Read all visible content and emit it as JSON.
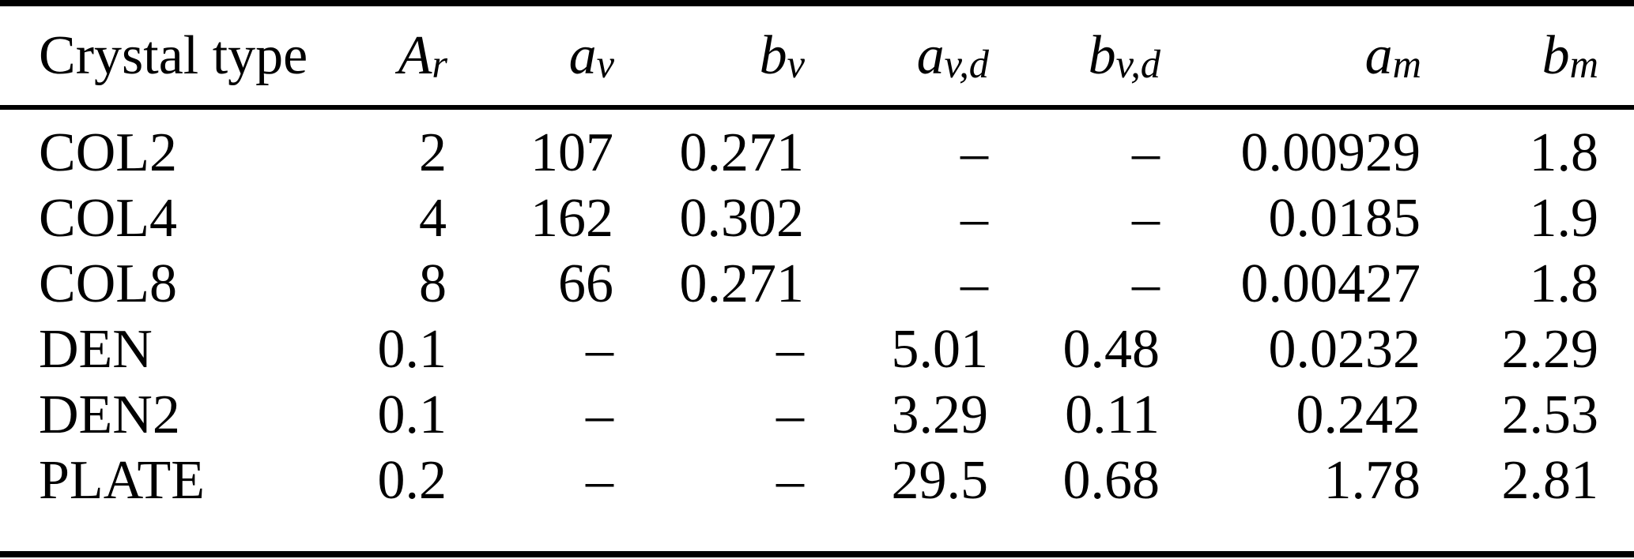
{
  "table": {
    "title": "crystal-type-parameters",
    "text_color": "#000000",
    "background_color": "#ffffff",
    "rule_color": "#000000",
    "missing_value_symbol": "–",
    "columns": [
      {
        "base": "Crystal type",
        "sub": ""
      },
      {
        "base": "A",
        "sub": "r"
      },
      {
        "base": "a",
        "sub": "v"
      },
      {
        "base": "b",
        "sub": "v"
      },
      {
        "base": "a",
        "sub": "v,d"
      },
      {
        "base": "b",
        "sub": "v,d"
      },
      {
        "base": "a",
        "sub": "m"
      },
      {
        "base": "b",
        "sub": "m"
      }
    ],
    "rows": [
      {
        "cells": [
          "COL2",
          "2",
          "107",
          "0.271",
          "–",
          "–",
          "0.00929",
          "1.8"
        ]
      },
      {
        "cells": [
          "COL4",
          "4",
          "162",
          "0.302",
          "–",
          "–",
          "0.0185",
          "1.9"
        ]
      },
      {
        "cells": [
          "COL8",
          "8",
          "66",
          "0.271",
          "–",
          "–",
          "0.00427",
          "1.8"
        ]
      },
      {
        "cells": [
          "DEN",
          "0.1",
          "–",
          "–",
          "5.01",
          "0.48",
          "0.0232",
          "2.29"
        ]
      },
      {
        "cells": [
          "DEN2",
          "0.1",
          "–",
          "–",
          "3.29",
          "0.11",
          "0.242",
          "2.53"
        ]
      },
      {
        "cells": [
          "PLATE",
          "0.2",
          "–",
          "–",
          "29.5",
          "0.68",
          "1.78",
          "2.81"
        ]
      }
    ]
  }
}
